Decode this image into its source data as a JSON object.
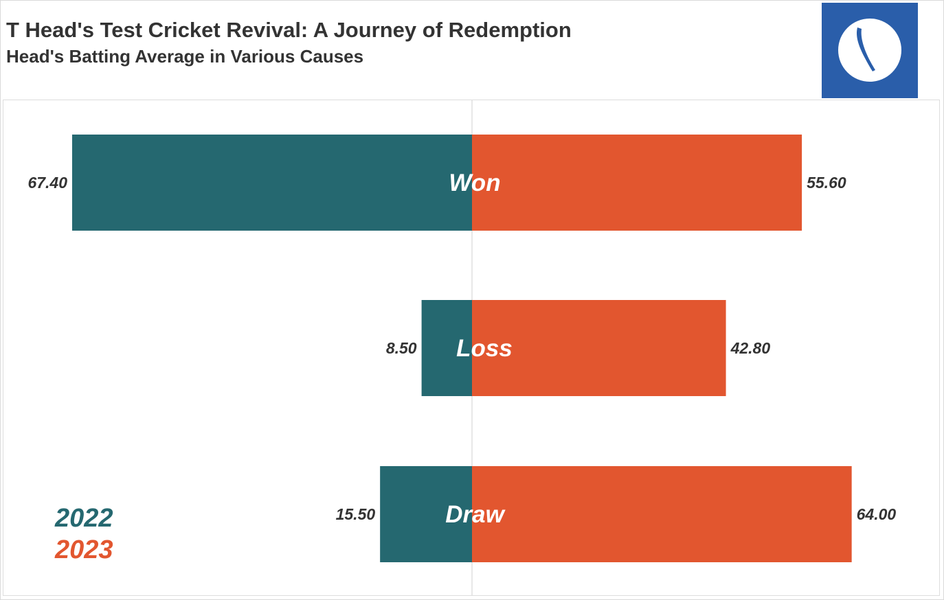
{
  "header": {
    "title": "T Head's Test Cricket Revival: A Journey of Redemption",
    "subtitle": "Head's Batting Average in Various Causes"
  },
  "logo": {
    "icon": "cricket-ball-logo",
    "background": "#2a5eaa"
  },
  "colors": {
    "series_2022": "#256870",
    "series_2023": "#e2562f"
  },
  "chart_data": {
    "type": "bar",
    "orientation": "horizontal-diverging",
    "categories": [
      "Won",
      "Loss",
      "Draw"
    ],
    "series": [
      {
        "name": "2022",
        "values": [
          67.4,
          8.5,
          15.5
        ],
        "labels": [
          "67.40",
          "8.50",
          "15.50"
        ],
        "direction": "left",
        "color": "#256870"
      },
      {
        "name": "2023",
        "values": [
          55.6,
          42.8,
          64.0
        ],
        "labels": [
          "55.60",
          "42.80",
          "64.00"
        ],
        "direction": "right",
        "color": "#e2562f"
      }
    ],
    "xlim": [
      -67.4,
      67.4
    ],
    "legend": {
      "placement": "bottom-left",
      "entries": [
        "2022",
        "2023"
      ]
    },
    "grid": false
  }
}
